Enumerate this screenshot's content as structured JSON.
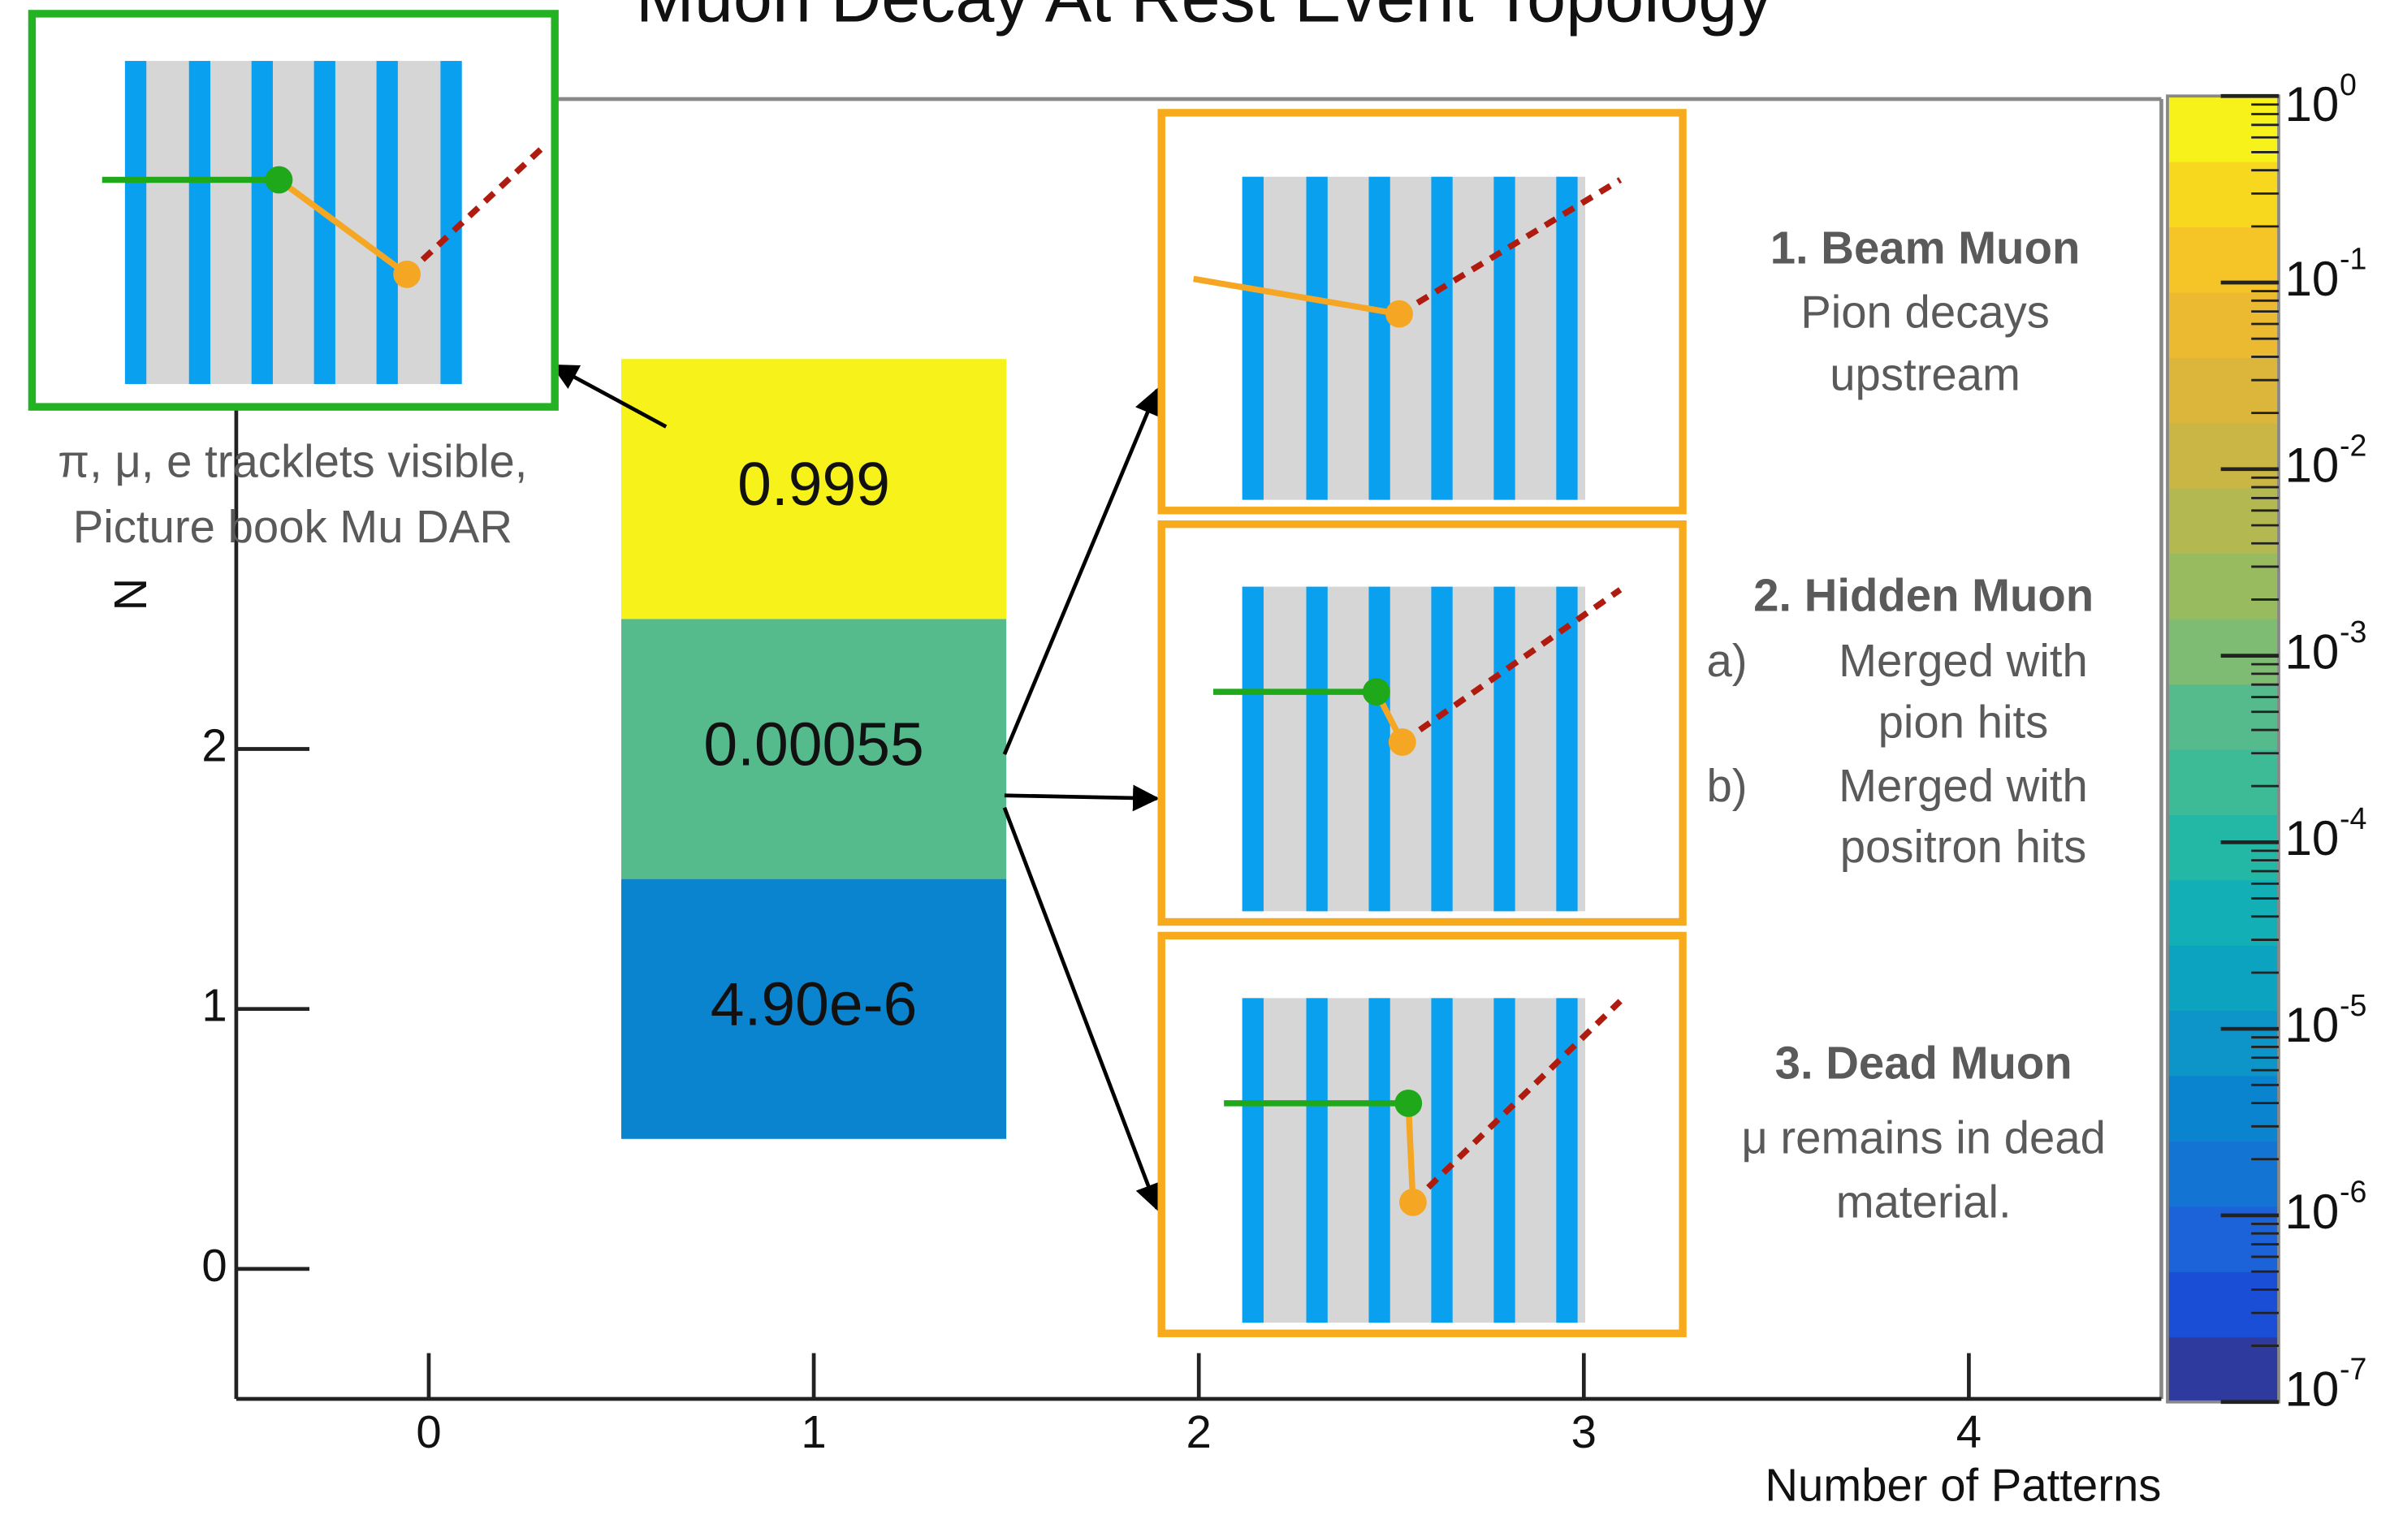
{
  "chart_data": {
    "type": "heatmap",
    "title": "Muon Decay At Rest Event Topology",
    "xlabel": "Number of Patterns",
    "ylabel": "N",
    "x": [
      1,
      1,
      1
    ],
    "y": [
      1,
      2,
      3
    ],
    "values": [
      4.9e-06,
      0.00055,
      0.999
    ],
    "value_labels": [
      "4.90e-6",
      "0.00055",
      "0.999"
    ],
    "xlim": [
      -0.5,
      4.5
    ],
    "ylim": [
      -0.5,
      4.5
    ],
    "xticks": [
      0,
      1,
      2,
      3,
      4
    ],
    "yticks": [
      0,
      1,
      2
    ],
    "zlim": [
      1e-07,
      1
    ],
    "zscale": "log",
    "zticks": [
      {
        "value": 1e-07,
        "label": "10",
        "exponent": "-7"
      },
      {
        "value": 1e-06,
        "label": "10",
        "exponent": "-6"
      },
      {
        "value": 1e-05,
        "label": "10",
        "exponent": "-5"
      },
      {
        "value": 0.0001,
        "label": "10",
        "exponent": "-4"
      },
      {
        "value": 0.001,
        "label": "10",
        "exponent": "-3"
      },
      {
        "value": 0.01,
        "label": "10",
        "exponent": "-2"
      },
      {
        "value": 0.1,
        "label": "10",
        "exponent": "-1"
      },
      {
        "value": 1,
        "label": "10",
        "exponent": "0"
      }
    ],
    "colormap": [
      "#2e3a9e",
      "#1b4ed6",
      "#1c62d9",
      "#1474d4",
      "#0b84cf",
      "#0d94c8",
      "#0ba3c0",
      "#12b0b6",
      "#23b7a6",
      "#3dbb96",
      "#55bb8d",
      "#7dbc72",
      "#99bb60",
      "#b3b851",
      "#c9b645",
      "#dbb63a",
      "#ecba30",
      "#f5c528",
      "#f8d81f",
      "#f6f21a"
    ],
    "annotations": [
      "π, μ, e tracklets visible,",
      "Picture book Mu DAR",
      "1. Beam Muon",
      "Pion decays",
      "upstream",
      "2. Hidden Muon",
      "a)",
      "Merged with",
      "pion hits",
      "b)",
      "Merged with",
      "positron hits",
      "3. Dead Muon",
      "μ remains in dead",
      "material."
    ]
  }
}
